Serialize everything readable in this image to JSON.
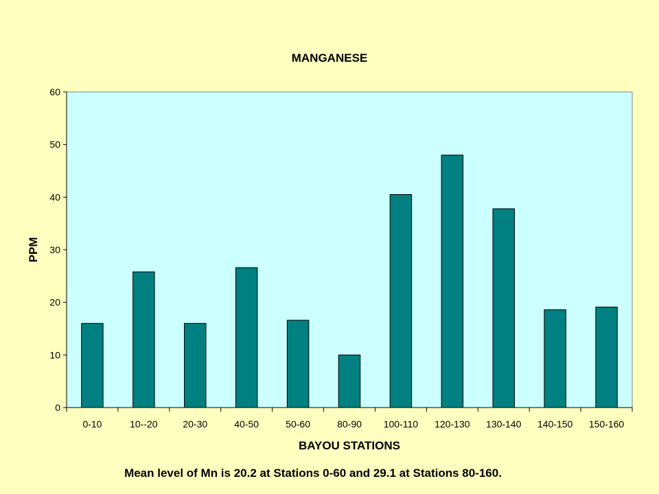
{
  "chart_data": {
    "type": "bar",
    "title": "MANGANESE",
    "xlabel": "BAYOU STATIONS",
    "ylabel": "PPM",
    "categories": [
      "0-10",
      "10--20",
      "20-30",
      "40-50",
      "50-60",
      "80-90",
      "100-110",
      "120-130",
      "130-140",
      "140-150",
      "150-160"
    ],
    "values": [
      16,
      25.8,
      16,
      26.6,
      16.6,
      10,
      40.5,
      48,
      37.8,
      18.6,
      19.1
    ],
    "ylim": [
      0,
      60
    ],
    "yticks": [
      0,
      10,
      20,
      30,
      40,
      50,
      60
    ],
    "grid": false,
    "legend": "none"
  },
  "colors": {
    "background": "#ffffc0",
    "plot_area": "#ccffff",
    "bar": "#008080"
  },
  "caption": "Mean level of Mn is 20.2 at Stations 0-60 and 29.1 at Stations 80-160."
}
